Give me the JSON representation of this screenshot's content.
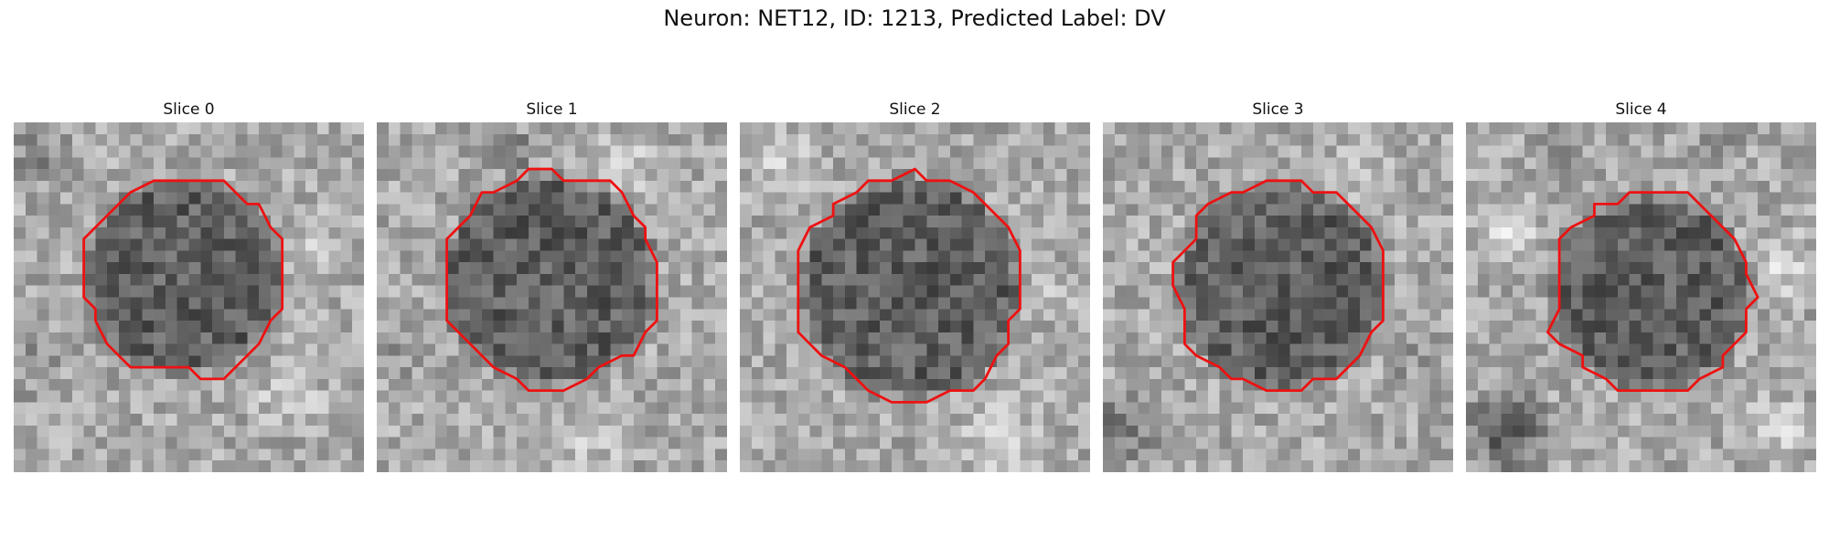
{
  "figure": {
    "title": "Neuron: NET12, ID: 1213, Predicted Label: DV"
  },
  "panels": [
    {
      "label": "Slice 0"
    },
    {
      "label": "Slice 1"
    },
    {
      "label": "Slice 2"
    },
    {
      "label": "Slice 3"
    },
    {
      "label": "Slice 4"
    }
  ],
  "colors": {
    "contour": "#ee1111",
    "colormap": "grayscale"
  }
}
